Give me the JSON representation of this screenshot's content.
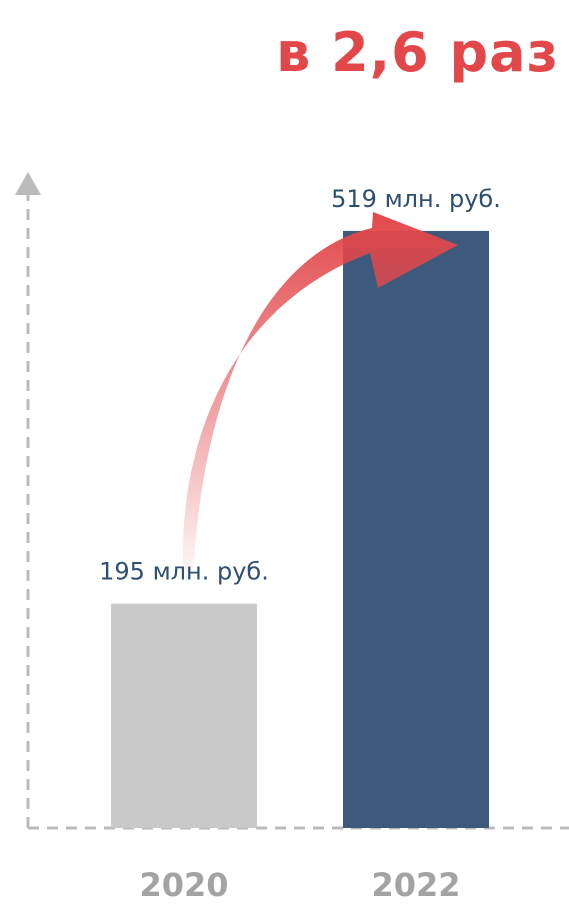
{
  "chart_data": {
    "type": "bar",
    "title": "в 2,6 раз",
    "categories": [
      "2020",
      "2022"
    ],
    "values": [
      195,
      519
    ],
    "data_labels": [
      "195 млн. руб.",
      "519 млн. руб."
    ],
    "xlabel": "",
    "ylabel": "",
    "ylim": [
      0,
      565
    ],
    "grid": false,
    "legend": "none",
    "bar_colors": [
      "#c9c9c9",
      "#3d5a7d"
    ],
    "title_color": "#e2474a",
    "label_color": "#2d4f72",
    "tick_color": "#a3a3a3",
    "axis_color": "#bbbbbb",
    "annotation": {
      "type": "curved-arrow",
      "from": "2020",
      "to": "2022",
      "color": "#e2474a"
    }
  }
}
